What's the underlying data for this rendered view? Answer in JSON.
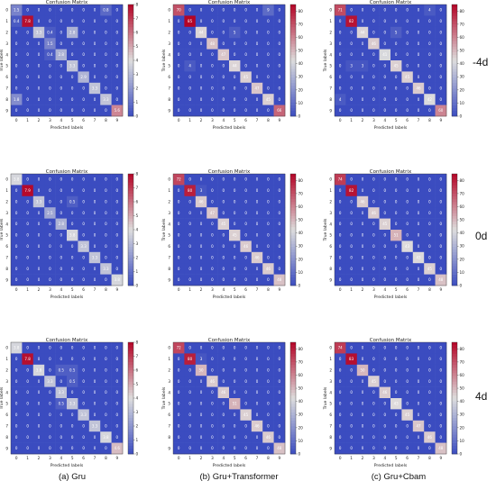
{
  "row_labels": [
    "-4d",
    "0d",
    "4d"
  ],
  "column_captions": [
    "(a) Gru",
    "(b) Gru+Transformer",
    "(c) Gru+Cbam"
  ],
  "colors": {
    "low": "#3b4cc0",
    "mid": "#dddddd",
    "high": "#b40426"
  },
  "chart_data": [
    {
      "type": "heatmap",
      "title": "Confusion Matrix",
      "xlabel": "Predicted labels",
      "ylabel": "True labels",
      "x": [
        0,
        1,
        2,
        3,
        4,
        5,
        6,
        7,
        8,
        9
      ],
      "y": [
        0,
        1,
        2,
        3,
        4,
        5,
        6,
        7,
        8,
        9
      ],
      "colorbar_ticks": [
        0,
        1,
        2,
        3,
        4,
        5,
        6,
        7,
        8
      ],
      "vmax": 8,
      "diagonal": [
        1.5,
        7.8,
        3.3,
        1.5,
        2.8,
        3.3,
        2.9,
        3.3,
        3.3,
        5.6
      ],
      "off_diagonal": [
        {
          "row": 0,
          "col": 8,
          "value": 0.8
        },
        {
          "row": 1,
          "col": 0,
          "value": 0.4
        },
        {
          "row": 2,
          "col": 5,
          "value": 2.8
        },
        {
          "row": 2,
          "col": 3,
          "value": 0.4
        },
        {
          "row": 4,
          "col": 3,
          "value": 0.4
        },
        {
          "row": 8,
          "col": 0,
          "value": 1.8
        }
      ]
    },
    {
      "type": "heatmap",
      "title": "Confusion Matrix",
      "xlabel": "Predicted labels",
      "ylabel": "True labels",
      "x": [
        0,
        1,
        2,
        3,
        4,
        5,
        6,
        7,
        8,
        9
      ],
      "y": [
        0,
        1,
        2,
        3,
        4,
        5,
        6,
        7,
        8,
        9
      ],
      "colorbar_ticks": [
        0,
        10,
        20,
        30,
        40,
        50,
        60,
        70,
        80
      ],
      "vmax": 85,
      "diagonal": [
        70,
        85,
        44,
        48,
        47,
        44,
        45,
        47,
        45,
        66
      ],
      "off_diagonal": [
        {
          "row": 0,
          "col": 8,
          "value": 9
        },
        {
          "row": 2,
          "col": 5,
          "value": 5
        },
        {
          "row": 5,
          "col": 1,
          "value": 4
        }
      ]
    },
    {
      "type": "heatmap",
      "title": "Confusion Matrix",
      "xlabel": "Predicted labels",
      "ylabel": "True labels",
      "x": [
        0,
        1,
        2,
        3,
        4,
        5,
        6,
        7,
        8,
        9
      ],
      "y": [
        0,
        1,
        2,
        3,
        4,
        5,
        6,
        7,
        8,
        9
      ],
      "colorbar_ticks": [
        0,
        10,
        20,
        30,
        40,
        50,
        60,
        70,
        80
      ],
      "vmax": 85,
      "diagonal": [
        71,
        82,
        44,
        46,
        41,
        45,
        45,
        46,
        42,
        60
      ],
      "off_diagonal": [
        {
          "row": 0,
          "col": 8,
          "value": 4
        },
        {
          "row": 2,
          "col": 5,
          "value": 5
        },
        {
          "row": 5,
          "col": 1,
          "value": 3
        },
        {
          "row": 5,
          "col": 2,
          "value": 3
        },
        {
          "row": 8,
          "col": 0,
          "value": 4
        }
      ]
    },
    {
      "type": "heatmap",
      "title": "Confusion Matrix",
      "xlabel": "Predicted labels",
      "ylabel": "True labels",
      "x": [
        0,
        1,
        2,
        3,
        4,
        5,
        6,
        7,
        8,
        9
      ],
      "y": [
        0,
        1,
        2,
        3,
        4,
        5,
        6,
        7,
        8,
        9
      ],
      "colorbar_ticks": [
        0,
        1,
        2,
        3,
        4,
        5,
        6,
        7,
        8
      ],
      "vmax": 8,
      "diagonal": [
        3.8,
        7.9,
        3.3,
        2.5,
        2.8,
        3.8,
        3.3,
        3.3,
        3.3,
        3.8
      ],
      "off_diagonal": [
        {
          "row": 2,
          "col": 5,
          "value": 0.5
        }
      ]
    },
    {
      "type": "heatmap",
      "title": "Confusion Matrix",
      "xlabel": "Predicted labels",
      "ylabel": "True labels",
      "x": [
        0,
        1,
        2,
        3,
        4,
        5,
        6,
        7,
        8,
        9
      ],
      "y": [
        0,
        1,
        2,
        3,
        4,
        5,
        6,
        7,
        8,
        9
      ],
      "colorbar_ticks": [
        0,
        10,
        20,
        30,
        40,
        50,
        60,
        70,
        80
      ],
      "vmax": 85,
      "diagonal": [
        72,
        80,
        46,
        47,
        45,
        45,
        46,
        46,
        46,
        48
      ],
      "off_diagonal": [
        {
          "row": 1,
          "col": 2,
          "value": 3
        }
      ]
    },
    {
      "type": "heatmap",
      "title": "Confusion Matrix",
      "xlabel": "Predicted labels",
      "ylabel": "True labels",
      "x": [
        0,
        1,
        2,
        3,
        4,
        5,
        6,
        7,
        8,
        9
      ],
      "y": [
        0,
        1,
        2,
        3,
        4,
        5,
        6,
        7,
        8,
        9
      ],
      "colorbar_ticks": [
        0,
        10,
        20,
        30,
        40,
        50,
        60,
        70,
        80
      ],
      "vmax": 85,
      "diagonal": [
        74,
        82,
        46,
        46,
        45,
        51,
        43,
        43,
        45,
        48
      ],
      "off_diagonal": []
    },
    {
      "type": "heatmap",
      "title": "Confusion Matrix",
      "xlabel": "Predicted labels",
      "ylabel": "True labels",
      "x": [
        0,
        1,
        2,
        3,
        4,
        5,
        6,
        7,
        8,
        9
      ],
      "y": [
        0,
        1,
        2,
        3,
        4,
        5,
        6,
        7,
        8,
        9
      ],
      "colorbar_ticks": [
        0,
        1,
        2,
        3,
        4,
        5,
        6,
        7,
        8
      ],
      "vmax": 8,
      "diagonal": [
        3.8,
        7.8,
        3.8,
        3.3,
        3.3,
        3.3,
        3.3,
        3.3,
        3.8,
        4.6
      ],
      "off_diagonal": [
        {
          "row": 2,
          "col": 4,
          "value": 0.5
        },
        {
          "row": 2,
          "col": 5,
          "value": 0.5
        },
        {
          "row": 3,
          "col": 5,
          "value": 0.5
        },
        {
          "row": 5,
          "col": 4,
          "value": 0.5
        }
      ]
    },
    {
      "type": "heatmap",
      "title": "Confusion Matrix",
      "xlabel": "Predicted labels",
      "ylabel": "True labels",
      "x": [
        0,
        1,
        2,
        3,
        4,
        5,
        6,
        7,
        8,
        9
      ],
      "y": [
        0,
        1,
        2,
        3,
        4,
        5,
        6,
        7,
        8,
        9
      ],
      "colorbar_ticks": [
        0,
        10,
        20,
        30,
        40,
        50,
        60,
        70,
        80
      ],
      "vmax": 85,
      "diagonal": [
        72,
        80,
        50,
        46,
        46,
        51,
        45,
        46,
        46,
        48
      ],
      "off_diagonal": [
        {
          "row": 1,
          "col": 2,
          "value": 3
        }
      ]
    },
    {
      "type": "heatmap",
      "title": "Confusion Matrix",
      "xlabel": "Predicted labels",
      "ylabel": "True labels",
      "x": [
        0,
        1,
        2,
        3,
        4,
        5,
        6,
        7,
        8,
        9
      ],
      "y": [
        0,
        1,
        2,
        3,
        4,
        5,
        6,
        7,
        8,
        9
      ],
      "colorbar_ticks": [
        0,
        10,
        20,
        30,
        40,
        50,
        60,
        70,
        80
      ],
      "vmax": 85,
      "diagonal": [
        74,
        83,
        50,
        45,
        46,
        43,
        45,
        47,
        46,
        48
      ],
      "off_diagonal": []
    }
  ]
}
